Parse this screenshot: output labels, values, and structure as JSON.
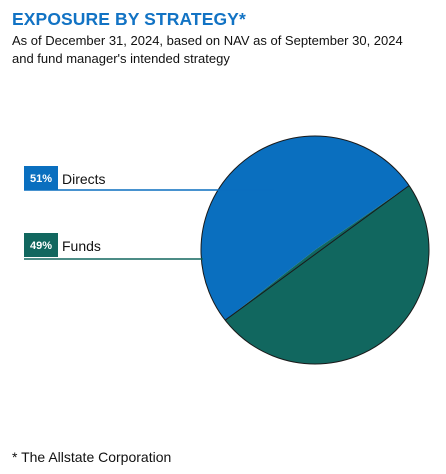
{
  "header": {
    "title": "EXPOSURE BY STRATEGY*",
    "subtitle_line1": "As of December 31, 2024, based on NAV as of September 30, 2024",
    "subtitle_line2": "and fund manager's intended strategy"
  },
  "footnote": "* The Allstate Corporation",
  "chart_data": {
    "type": "pie",
    "title": "EXPOSURE BY STRATEGY*",
    "slices": [
      {
        "label": "Directs",
        "value": 51,
        "value_label": "51%",
        "color": "#0a6fbf"
      },
      {
        "label": "Funds",
        "value": 49,
        "value_label": "49%",
        "color": "#11675f"
      }
    ],
    "legend": "left, with leader lines"
  }
}
